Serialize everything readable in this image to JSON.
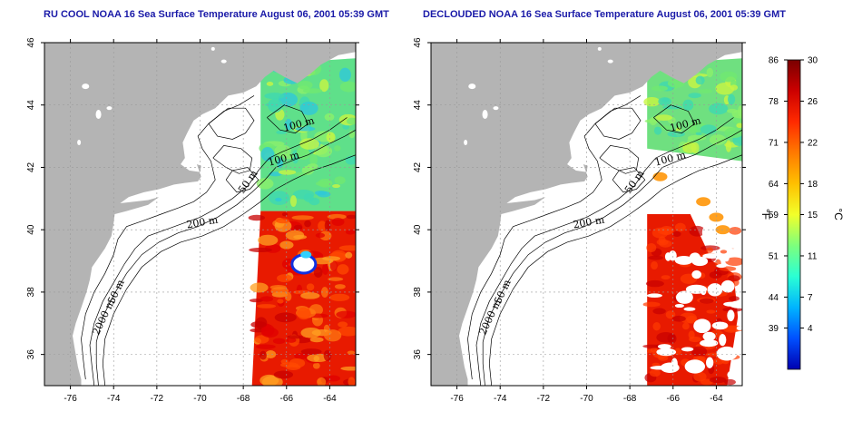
{
  "panels": [
    {
      "title": "RU COOL NOAA 16 Sea Surface Temperature August 06, 2001 05:39 GMT"
    },
    {
      "title": "DECLOUDED NOAA 16 Sea Surface Temperature August 06, 2001 05:39 GMT"
    }
  ],
  "map": {
    "lon_ticks": [
      -76,
      -74,
      -72,
      -70,
      -68,
      -66,
      -64
    ],
    "lat_ticks": [
      36,
      38,
      40,
      42,
      44,
      46
    ],
    "lon_range": [
      -77.2,
      -62.8
    ],
    "lat_range": [
      35,
      46
    ],
    "contour_labels": [
      "100 m",
      "100 m",
      "50 m",
      "200 m",
      "50 m",
      "2000 m"
    ],
    "colors": {
      "land": "#b4b4b4",
      "ocean": "#ffffff",
      "grid": "#9a9a9a",
      "contour": "#000000"
    }
  },
  "colorbar": {
    "fahrenheit_ticks": [
      "86",
      "78",
      "71",
      "64",
      "59",
      "51",
      "44",
      "39"
    ],
    "celsius_ticks": [
      "30",
      "26",
      "22",
      "18",
      "15",
      "11",
      "7",
      "4"
    ],
    "fahrenheit_unit": "°F",
    "celsius_unit": "°C",
    "range_c": [
      0,
      30
    ],
    "gradient": [
      "#7a0000",
      "#cc0000",
      "#ff2a00",
      "#ff7a00",
      "#ffc000",
      "#f2ff2a",
      "#7dff7d",
      "#2affd4",
      "#00b4ff",
      "#0050ff",
      "#0000b0"
    ]
  }
}
